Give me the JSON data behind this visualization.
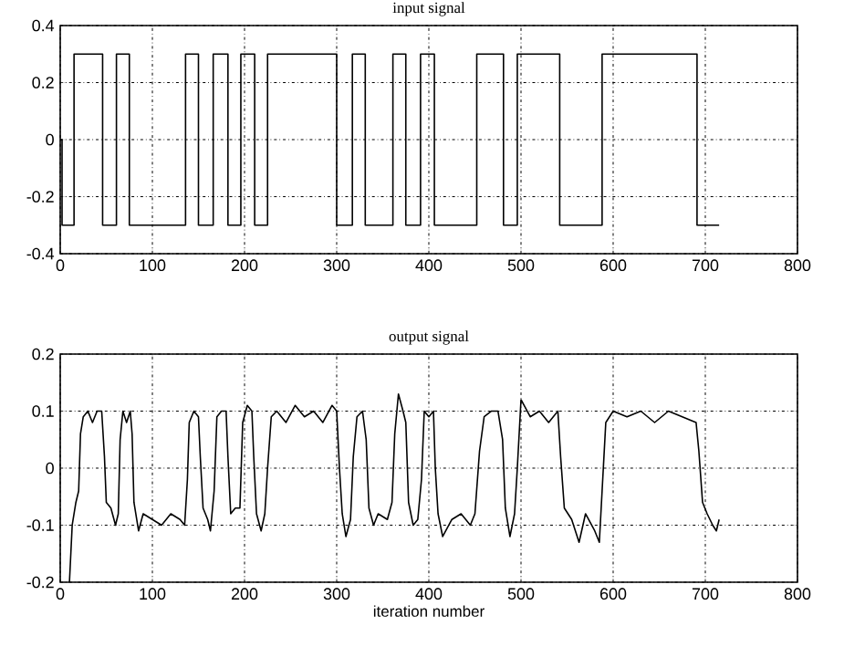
{
  "chart_data": [
    {
      "type": "step",
      "title": "input signal",
      "xlim": [
        0,
        800
      ],
      "ylim": [
        -0.4,
        0.4
      ],
      "xticks": [
        0,
        100,
        200,
        300,
        400,
        500,
        600,
        700,
        800
      ],
      "yticks": [
        -0.4,
        -0.2,
        0,
        0.2,
        0.4
      ],
      "grid": true,
      "series": [
        {
          "color": "#000000",
          "x": [
            0,
            2,
            15,
            46,
            61,
            75,
            136,
            150,
            166,
            182,
            196,
            211,
            225,
            300,
            317,
            331,
            361,
            375,
            391,
            406,
            452,
            481,
            496,
            542,
            588,
            691,
            715
          ],
          "values": [
            0,
            -0.3,
            0.3,
            -0.3,
            0.3,
            -0.3,
            0.3,
            -0.3,
            0.3,
            -0.3,
            0.3,
            -0.3,
            0.3,
            -0.3,
            0.3,
            -0.3,
            0.3,
            -0.3,
            0.3,
            -0.3,
            0.3,
            -0.3,
            0.3,
            -0.3,
            0.3,
            -0.3,
            -0.3
          ]
        }
      ]
    },
    {
      "type": "line",
      "title": "output signal",
      "xlabel": "iteration number",
      "xlim": [
        0,
        800
      ],
      "ylim": [
        -0.2,
        0.2
      ],
      "xticks": [
        0,
        100,
        200,
        300,
        400,
        500,
        600,
        700,
        800
      ],
      "yticks": [
        -0.2,
        -0.1,
        0,
        0.1,
        0.2
      ],
      "grid": true,
      "series": [
        {
          "color": "#000000",
          "x": [
            10,
            13,
            17,
            20,
            22,
            25,
            30,
            35,
            40,
            45,
            48,
            50,
            55,
            60,
            63,
            65,
            68,
            72,
            76,
            78,
            80,
            85,
            90,
            100,
            110,
            120,
            130,
            135,
            138,
            140,
            145,
            150,
            152,
            155,
            160,
            163,
            167,
            170,
            175,
            180,
            182,
            185,
            190,
            195,
            198,
            203,
            208,
            210,
            213,
            218,
            222,
            225,
            229,
            235,
            245,
            255,
            265,
            275,
            285,
            295,
            300,
            303,
            306,
            310,
            315,
            318,
            322,
            328,
            332,
            335,
            340,
            345,
            355,
            360,
            363,
            367,
            372,
            375,
            378,
            383,
            388,
            392,
            395,
            400,
            405,
            407,
            410,
            415,
            425,
            435,
            445,
            450,
            455,
            460,
            468,
            475,
            480,
            483,
            488,
            493,
            496,
            500,
            510,
            520,
            530,
            540,
            543,
            547,
            555,
            563,
            570,
            580,
            585,
            588,
            592,
            600,
            615,
            630,
            645,
            660,
            675,
            690,
            693,
            697,
            702,
            708,
            712,
            715
          ],
          "values": [
            -0.2,
            -0.1,
            -0.06,
            -0.04,
            0.06,
            0.09,
            0.1,
            0.08,
            0.1,
            0.1,
            0.02,
            -0.06,
            -0.07,
            -0.1,
            -0.08,
            0.05,
            0.1,
            0.08,
            0.1,
            0.06,
            -0.06,
            -0.11,
            -0.08,
            -0.09,
            -0.1,
            -0.08,
            -0.09,
            -0.1,
            -0.02,
            0.08,
            0.1,
            0.09,
            0.02,
            -0.07,
            -0.09,
            -0.11,
            -0.04,
            0.09,
            0.1,
            0.1,
            0.02,
            -0.08,
            -0.07,
            -0.07,
            0.08,
            0.11,
            0.1,
            0.02,
            -0.08,
            -0.11,
            -0.08,
            0.0,
            0.09,
            0.1,
            0.08,
            0.11,
            0.09,
            0.1,
            0.08,
            0.11,
            0.1,
            0.0,
            -0.08,
            -0.12,
            -0.09,
            0.02,
            0.09,
            0.1,
            0.05,
            -0.07,
            -0.1,
            -0.08,
            -0.09,
            -0.06,
            0.06,
            0.13,
            0.1,
            0.08,
            -0.06,
            -0.1,
            -0.09,
            -0.02,
            0.1,
            0.09,
            0.1,
            0.0,
            -0.08,
            -0.12,
            -0.09,
            -0.08,
            -0.1,
            -0.08,
            0.03,
            0.09,
            0.1,
            0.1,
            0.05,
            -0.07,
            -0.12,
            -0.08,
            0.0,
            0.12,
            0.09,
            0.1,
            0.08,
            0.1,
            0.02,
            -0.07,
            -0.09,
            -0.13,
            -0.08,
            -0.11,
            -0.13,
            -0.04,
            0.08,
            0.1,
            0.09,
            0.1,
            0.08,
            0.1,
            0.09,
            0.08,
            0.03,
            -0.06,
            -0.08,
            -0.1,
            -0.11,
            -0.09
          ]
        }
      ]
    }
  ]
}
